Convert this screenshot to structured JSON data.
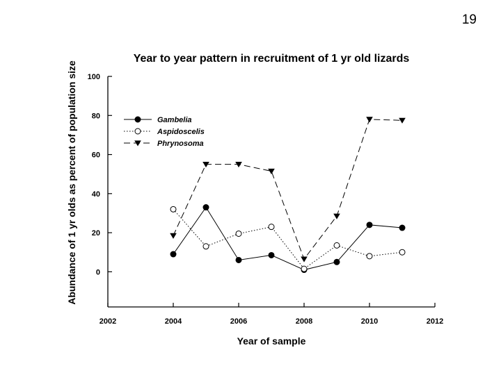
{
  "slide": {
    "number": "19"
  },
  "chart_data": {
    "type": "line",
    "title": "Year to year pattern in recruitment of 1 yr old lizards",
    "xlabel": "Year of sample",
    "ylabel": "Abundance of 1 yr olds as percent of population size",
    "xlim": [
      2002,
      2012
    ],
    "ylim": [
      -18,
      100
    ],
    "xticks": [
      2002,
      2004,
      2006,
      2008,
      2010,
      2012
    ],
    "yticks": [
      0,
      20,
      40,
      60,
      80,
      100
    ],
    "grid": false,
    "legend_position": "top-left",
    "x": [
      2004,
      2005,
      2006,
      2007,
      2008,
      2009,
      2010,
      2011
    ],
    "series": [
      {
        "name": "Gambelia",
        "marker": "filled-circle",
        "line": "solid",
        "values": [
          9,
          33,
          6,
          8.5,
          1,
          5,
          24,
          22.5
        ]
      },
      {
        "name": "Aspidoscelis",
        "marker": "open-circle",
        "line": "dotted",
        "values": [
          32,
          13,
          19.5,
          23,
          1.5,
          13.5,
          8,
          10
        ]
      },
      {
        "name": "Phrynosoma",
        "marker": "filled-triangle-down",
        "line": "dashed",
        "values": [
          18.5,
          55,
          55,
          51.5,
          6.5,
          28.5,
          78,
          77.5
        ]
      }
    ]
  }
}
